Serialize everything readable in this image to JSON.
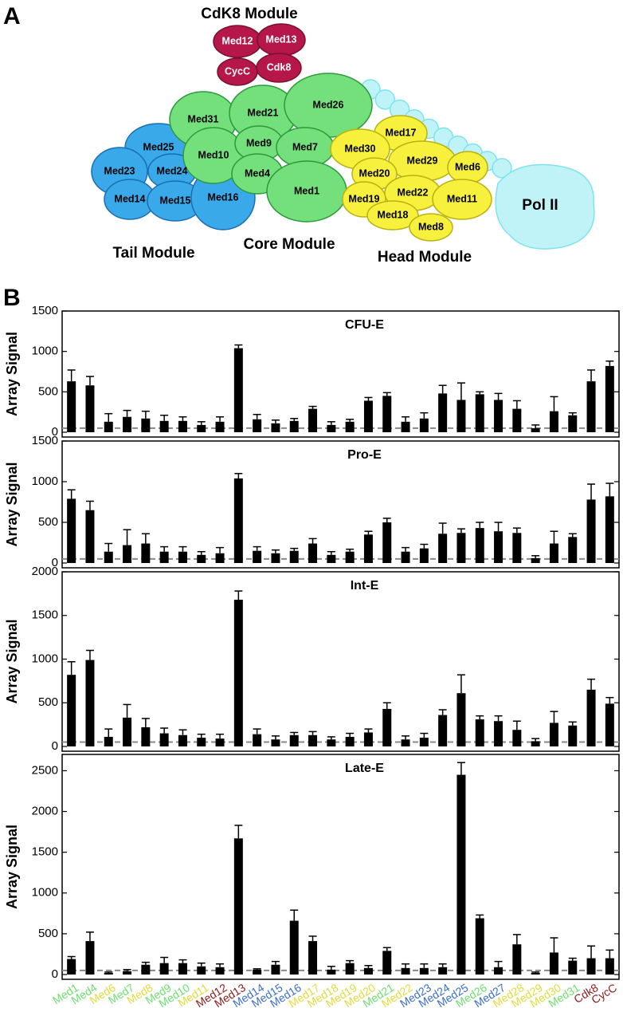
{
  "diagram": {
    "panel_label": "A",
    "modules": [
      "CdK8 Module",
      "Tail Module",
      "Core Module",
      "Head Module",
      "Pol II"
    ],
    "subunits": [
      "Med12",
      "Med13",
      "CycC",
      "Cdk8",
      "Med31",
      "Med21",
      "Med26",
      "Med10",
      "Med9",
      "Med7",
      "Med4",
      "Med1",
      "Med17",
      "Med30",
      "Med29",
      "Med6",
      "Med20",
      "Med22",
      "Med11",
      "Med19",
      "Med18",
      "Med8",
      "Med25",
      "Med23",
      "Med24",
      "Med14",
      "Med15",
      "Med16"
    ]
  },
  "panel_b_label": "B",
  "chart_data": [
    {
      "type": "bar",
      "title": "CFU-E",
      "y_label": "Array Signal",
      "color": "#000000",
      "ylim": [
        0,
        1500
      ],
      "yticks": [
        0,
        500,
        1000,
        1500
      ],
      "reference_line": 50,
      "values": [
        630,
        580,
        130,
        190,
        170,
        140,
        140,
        90,
        130,
        1040,
        160,
        110,
        140,
        290,
        90,
        130,
        390,
        450,
        130,
        170,
        480,
        400,
        470,
        400,
        290,
        50,
        260,
        210,
        630,
        820
      ],
      "errors": [
        140,
        110,
        100,
        80,
        90,
        70,
        50,
        40,
        60,
        40,
        60,
        40,
        30,
        30,
        40,
        30,
        40,
        40,
        60,
        70,
        100,
        210,
        30,
        80,
        100,
        40,
        180,
        30,
        140,
        60
      ]
    },
    {
      "type": "bar",
      "title": "Pro-E",
      "y_label": "Array Signal",
      "color": "#000000",
      "ylim": [
        0,
        1500
      ],
      "yticks": [
        0,
        500,
        1000,
        1500
      ],
      "reference_line": 50,
      "values": [
        790,
        650,
        140,
        220,
        240,
        140,
        140,
        100,
        120,
        1040,
        150,
        120,
        150,
        240,
        100,
        140,
        350,
        500,
        140,
        180,
        360,
        370,
        430,
        390,
        370,
        60,
        240,
        320,
        780,
        820
      ],
      "errors": [
        110,
        110,
        100,
        190,
        120,
        60,
        60,
        40,
        70,
        60,
        50,
        40,
        30,
        60,
        40,
        30,
        40,
        50,
        50,
        50,
        130,
        50,
        70,
        110,
        60,
        30,
        150,
        40,
        190,
        160
      ]
    },
    {
      "type": "bar",
      "title": "Int-E",
      "y_label": "Array Signal",
      "color": "#000000",
      "ylim": [
        0,
        2000
      ],
      "yticks": [
        0,
        500,
        1000,
        1500,
        2000
      ],
      "reference_line": 50,
      "values": [
        820,
        990,
        110,
        330,
        220,
        150,
        130,
        100,
        90,
        1680,
        140,
        80,
        130,
        130,
        80,
        110,
        160,
        430,
        80,
        100,
        360,
        610,
        310,
        290,
        190,
        60,
        270,
        240,
        650,
        490
      ],
      "errors": [
        150,
        110,
        90,
        150,
        100,
        60,
        60,
        40,
        50,
        100,
        60,
        40,
        30,
        40,
        30,
        40,
        40,
        70,
        40,
        50,
        60,
        210,
        40,
        60,
        100,
        30,
        130,
        40,
        120,
        70
      ]
    },
    {
      "type": "bar",
      "title": "Late-E",
      "y_label": "Array Signal",
      "color": "#000000",
      "ylim": [
        0,
        2700
      ],
      "yticks": [
        0,
        500,
        1000,
        1500,
        2000,
        2500
      ],
      "reference_line": 50,
      "categories": [
        "Med1",
        "Med4",
        "Med6",
        "Med7",
        "Med8",
        "Med9",
        "Med10",
        "Med11",
        "Med12",
        "Med13",
        "Med14",
        "Med15",
        "Med16",
        "Med17",
        "Med18",
        "Med19",
        "Med20",
        "Med21",
        "Med22",
        "Med23",
        "Med24",
        "Med25",
        "Med26",
        "Med27",
        "Med28",
        "Med29",
        "Med30",
        "Med31",
        "Cdk8",
        "CycC"
      ],
      "category_colors": [
        "#6ee06e",
        "#6ee06e",
        "#e0dc3a",
        "#6ee06e",
        "#e0dc3a",
        "#6ee06e",
        "#6ee06e",
        "#e0dc3a",
        "#8b1a1a",
        "#8b1a1a",
        "#3b6fc8",
        "#3b6fc8",
        "#3b6fc8",
        "#e0dc3a",
        "#e0dc3a",
        "#e0dc3a",
        "#e0dc3a",
        "#6ee06e",
        "#e0dc3a",
        "#3b6fc8",
        "#3b6fc8",
        "#3b6fc8",
        "#6ee06e",
        "#3b6fc8",
        "#e0dc3a",
        "#e0dc3a",
        "#e0dc3a",
        "#6ee06e",
        "#8b1a1a",
        "#8b1a1a"
      ],
      "values": [
        190,
        410,
        20,
        40,
        120,
        140,
        140,
        100,
        90,
        1670,
        60,
        120,
        660,
        410,
        60,
        140,
        80,
        290,
        80,
        80,
        90,
        2450,
        690,
        90,
        370,
        20,
        270,
        170,
        200,
        200
      ],
      "errors": [
        30,
        110,
        10,
        20,
        30,
        70,
        40,
        40,
        40,
        160,
        10,
        40,
        130,
        60,
        40,
        30,
        30,
        40,
        50,
        50,
        40,
        150,
        40,
        70,
        120,
        10,
        180,
        30,
        150,
        100
      ]
    }
  ]
}
